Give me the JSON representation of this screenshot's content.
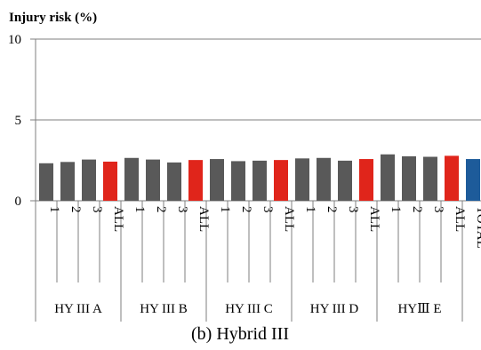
{
  "chart_data": {
    "type": "bar",
    "title": "Injury risk (%)",
    "caption": "(b) Hybrid III",
    "ylim": [
      0,
      10
    ],
    "yticks": [
      0,
      5,
      10
    ],
    "grid": true,
    "colors": {
      "test": "#595959",
      "all": "#e0251b",
      "total": "#1d5b9a",
      "grid": "#7f7f7f"
    },
    "groups": [
      {
        "label": "HY III A",
        "bars": [
          {
            "label": "1",
            "value": 2.32,
            "kind": "test"
          },
          {
            "label": "2",
            "value": 2.4,
            "kind": "test"
          },
          {
            "label": "3",
            "value": 2.55,
            "kind": "test"
          },
          {
            "label": "ALL",
            "value": 2.42,
            "kind": "all"
          }
        ]
      },
      {
        "label": "HY III B",
        "bars": [
          {
            "label": "1",
            "value": 2.65,
            "kind": "test"
          },
          {
            "label": "2",
            "value": 2.55,
            "kind": "test"
          },
          {
            "label": "3",
            "value": 2.37,
            "kind": "test"
          },
          {
            "label": "ALL",
            "value": 2.52,
            "kind": "all"
          }
        ]
      },
      {
        "label": "HY III C",
        "bars": [
          {
            "label": "1",
            "value": 2.58,
            "kind": "test"
          },
          {
            "label": "2",
            "value": 2.45,
            "kind": "test"
          },
          {
            "label": "3",
            "value": 2.48,
            "kind": "test"
          },
          {
            "label": "ALL",
            "value": 2.52,
            "kind": "all"
          }
        ]
      },
      {
        "label": "HY III D",
        "bars": [
          {
            "label": "1",
            "value": 2.62,
            "kind": "test"
          },
          {
            "label": "2",
            "value": 2.65,
            "kind": "test"
          },
          {
            "label": "3",
            "value": 2.48,
            "kind": "test"
          },
          {
            "label": "ALL",
            "value": 2.58,
            "kind": "all"
          }
        ]
      },
      {
        "label": "HYⅢ E",
        "bars": [
          {
            "label": "1",
            "value": 2.87,
            "kind": "test"
          },
          {
            "label": "2",
            "value": 2.75,
            "kind": "test"
          },
          {
            "label": "3",
            "value": 2.72,
            "kind": "test"
          },
          {
            "label": "ALL",
            "value": 2.78,
            "kind": "all"
          }
        ]
      },
      {
        "label": "",
        "bars": [
          {
            "label": "TOTAL",
            "value": 2.58,
            "kind": "total"
          }
        ]
      }
    ]
  }
}
